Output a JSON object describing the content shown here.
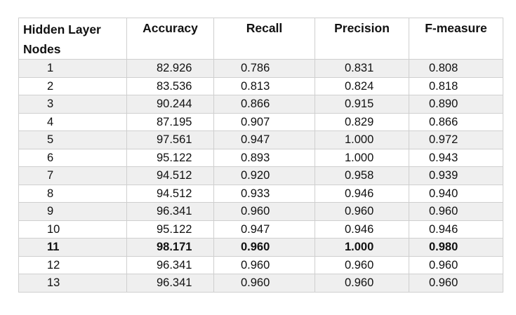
{
  "table": {
    "headers": {
      "nodes": "Hidden Layer Nodes",
      "accuracy": "Accuracy",
      "recall": "Recall",
      "precision": "Precision",
      "fmeasure": "F-measure"
    },
    "rows": [
      {
        "nodes": "1",
        "accuracy": "82.926",
        "recall": "0.786",
        "precision": "0.831",
        "fmeasure": "0.808",
        "bold": false
      },
      {
        "nodes": "2",
        "accuracy": "83.536",
        "recall": "0.813",
        "precision": "0.824",
        "fmeasure": "0.818",
        "bold": false
      },
      {
        "nodes": "3",
        "accuracy": "90.244",
        "recall": "0.866",
        "precision": "0.915",
        "fmeasure": "0.890",
        "bold": false
      },
      {
        "nodes": "4",
        "accuracy": "87.195",
        "recall": "0.907",
        "precision": "0.829",
        "fmeasure": "0.866",
        "bold": false
      },
      {
        "nodes": "5",
        "accuracy": "97.561",
        "recall": "0.947",
        "precision": "1.000",
        "fmeasure": "0.972",
        "bold": false
      },
      {
        "nodes": "6",
        "accuracy": "95.122",
        "recall": "0.893",
        "precision": "1.000",
        "fmeasure": "0.943",
        "bold": false
      },
      {
        "nodes": "7",
        "accuracy": "94.512",
        "recall": "0.920",
        "precision": "0.958",
        "fmeasure": "0.939",
        "bold": false
      },
      {
        "nodes": "8",
        "accuracy": "94.512",
        "recall": "0.933",
        "precision": "0.946",
        "fmeasure": "0.940",
        "bold": false
      },
      {
        "nodes": "9",
        "accuracy": "96.341",
        "recall": "0.960",
        "precision": "0.960",
        "fmeasure": "0.960",
        "bold": false
      },
      {
        "nodes": "10",
        "accuracy": "95.122",
        "recall": "0.947",
        "precision": "0.946",
        "fmeasure": "0.946",
        "bold": false
      },
      {
        "nodes": "11",
        "accuracy": "98.171",
        "recall": "0.960",
        "precision": "1.000",
        "fmeasure": "0.980",
        "bold": true
      },
      {
        "nodes": "12",
        "accuracy": "96.341",
        "recall": "0.960",
        "precision": "0.960",
        "fmeasure": "0.960",
        "bold": false
      },
      {
        "nodes": "13",
        "accuracy": "96.341",
        "recall": "0.960",
        "precision": "0.960",
        "fmeasure": "0.960",
        "bold": false
      }
    ]
  },
  "colors": {
    "stripe": "#efefef",
    "border": "#cfcfcf",
    "text": "#111111"
  }
}
